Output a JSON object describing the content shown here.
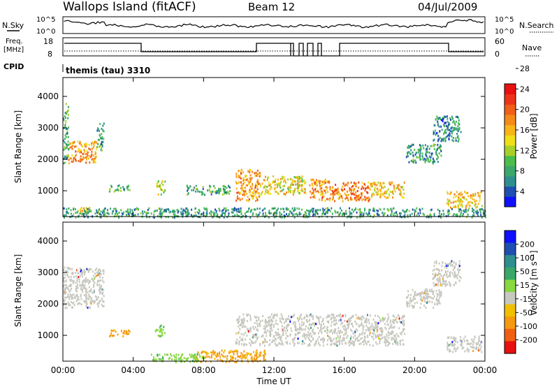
{
  "header": {
    "title": "Wallops Island (fitACF)",
    "beam": "Beam 12",
    "date": "04/Jul/2009"
  },
  "panels": {
    "nsky": {
      "label": "N.Sky",
      "tick_top": "10^5",
      "tick_bottom": "10^0"
    },
    "nsearch": {
      "label": "N.Search",
      "tick_top": "10^5",
      "tick_bottom": "10^0"
    },
    "freq": {
      "label_line1": "Freq.",
      "label_line2": "[MHz]",
      "tick_top": "18",
      "tick_bottom": "8"
    },
    "nave": {
      "label": "Nave",
      "tick_top": "60",
      "tick_bottom": "0"
    },
    "cpid": {
      "label": "CPID",
      "text": "themis (tau) 3310"
    }
  },
  "chart_data": [
    {
      "type": "heatmap",
      "name": "power",
      "ylabel": "Slant Range [km]",
      "y_ticks": [
        "1000",
        "2000",
        "3000",
        "4000"
      ],
      "y_tick_values": [
        1000,
        2000,
        3000,
        4000
      ],
      "ylim": [
        180,
        4600
      ],
      "xlim": [
        0,
        24
      ],
      "colorbar": {
        "label": "Power [dB]",
        "ticks": [
          "4",
          "8",
          "12",
          "16",
          "20",
          "24",
          "28"
        ],
        "colors": [
          "#1010ff",
          "#1f4fb0",
          "#2f8f8f",
          "#3aa86a",
          "#4cbd4c",
          "#a8cf2a",
          "#f0df18",
          "#f8b418",
          "#f48a18",
          "#f06018",
          "#ee3418",
          "#e81010"
        ]
      },
      "regions": [
        {
          "x": [
            0.0,
            0.3
          ],
          "y": [
            1900,
            3800
          ],
          "level": 0.3
        },
        {
          "x": [
            0.3,
            1.9
          ],
          "y": [
            1900,
            2600
          ],
          "level": 0.7
        },
        {
          "x": [
            1.9,
            2.3
          ],
          "y": [
            2300,
            3200
          ],
          "level": 0.3
        },
        {
          "x": [
            0.9,
            1.5
          ],
          "y": [
            300,
            500
          ],
          "level": 0.6
        },
        {
          "x": [
            2.6,
            3.8
          ],
          "y": [
            1000,
            1200
          ],
          "level": 0.3
        },
        {
          "x": [
            5.3,
            5.8
          ],
          "y": [
            900,
            1350
          ],
          "level": 0.5
        },
        {
          "x": [
            7.0,
            9.5
          ],
          "y": [
            900,
            1200
          ],
          "level": 0.3
        },
        {
          "x": [
            9.8,
            11.2
          ],
          "y": [
            700,
            1700
          ],
          "level": 0.7
        },
        {
          "x": [
            11.2,
            13.8
          ],
          "y": [
            900,
            1500
          ],
          "level": 0.55
        },
        {
          "x": [
            14.0,
            15.2
          ],
          "y": [
            700,
            1400
          ],
          "level": 0.7
        },
        {
          "x": [
            15.2,
            17.5
          ],
          "y": [
            700,
            1300
          ],
          "level": 0.75
        },
        {
          "x": [
            17.5,
            19.4
          ],
          "y": [
            800,
            1300
          ],
          "level": 0.6
        },
        {
          "x": [
            19.5,
            21.5
          ],
          "y": [
            1900,
            2500
          ],
          "level": 0.25
        },
        {
          "x": [
            21.0,
            22.6
          ],
          "y": [
            2600,
            3400
          ],
          "level": 0.2
        },
        {
          "x": [
            21.8,
            23.8
          ],
          "y": [
            500,
            1000
          ],
          "level": 0.6
        },
        {
          "x": [
            0.0,
            24.0
          ],
          "y": [
            180,
            480
          ],
          "level": 0.25
        }
      ]
    },
    {
      "type": "heatmap",
      "name": "velocity",
      "xlabel": "Time UT",
      "ylabel": "Slant Range [km]",
      "y_ticks": [
        "1000",
        "2000",
        "3000",
        "4000"
      ],
      "y_tick_values": [
        1000,
        2000,
        3000,
        4000
      ],
      "ylim": [
        180,
        4600
      ],
      "x_ticks": [
        "00:00",
        "04:00",
        "08:00",
        "12:00",
        "16:00",
        "20:00",
        "00:00"
      ],
      "x_tick_values": [
        0,
        4,
        8,
        12,
        16,
        20,
        24
      ],
      "xlim": [
        0,
        24
      ],
      "colorbar": {
        "label": "Velocity [m s⁻¹]",
        "ticks": [
          "200",
          "100",
          "50",
          "15",
          "-15",
          "-50",
          "-100",
          "-200"
        ],
        "colors": [
          "#1010ff",
          "#1f4fb0",
          "#2f8f8f",
          "#3aa86a",
          "#88d840",
          "#c8c8c0",
          "#f0c000",
          "#f49a10",
          "#f06010",
          "#e81010"
        ]
      },
      "ground_scatter_color": "#c8c8c0",
      "regions": [
        {
          "x": [
            0.0,
            2.3
          ],
          "y": [
            1900,
            3200
          ],
          "kind": "gs"
        },
        {
          "x": [
            5.2,
            5.8
          ],
          "y": [
            1000,
            1350
          ],
          "kind": "green"
        },
        {
          "x": [
            2.6,
            3.8
          ],
          "y": [
            1000,
            1200
          ],
          "kind": "orange"
        },
        {
          "x": [
            7.5,
            11.5
          ],
          "y": [
            180,
            550
          ],
          "kind": "orange"
        },
        {
          "x": [
            5.0,
            8.0
          ],
          "y": [
            180,
            450
          ],
          "kind": "green"
        },
        {
          "x": [
            9.8,
            19.4
          ],
          "y": [
            700,
            1700
          ],
          "kind": "gs"
        },
        {
          "x": [
            19.5,
            21.5
          ],
          "y": [
            1900,
            2500
          ],
          "kind": "gs"
        },
        {
          "x": [
            21.8,
            23.8
          ],
          "y": [
            500,
            1000
          ],
          "kind": "gs"
        },
        {
          "x": [
            21.0,
            22.6
          ],
          "y": [
            2600,
            3400
          ],
          "kind": "gs"
        }
      ]
    }
  ]
}
